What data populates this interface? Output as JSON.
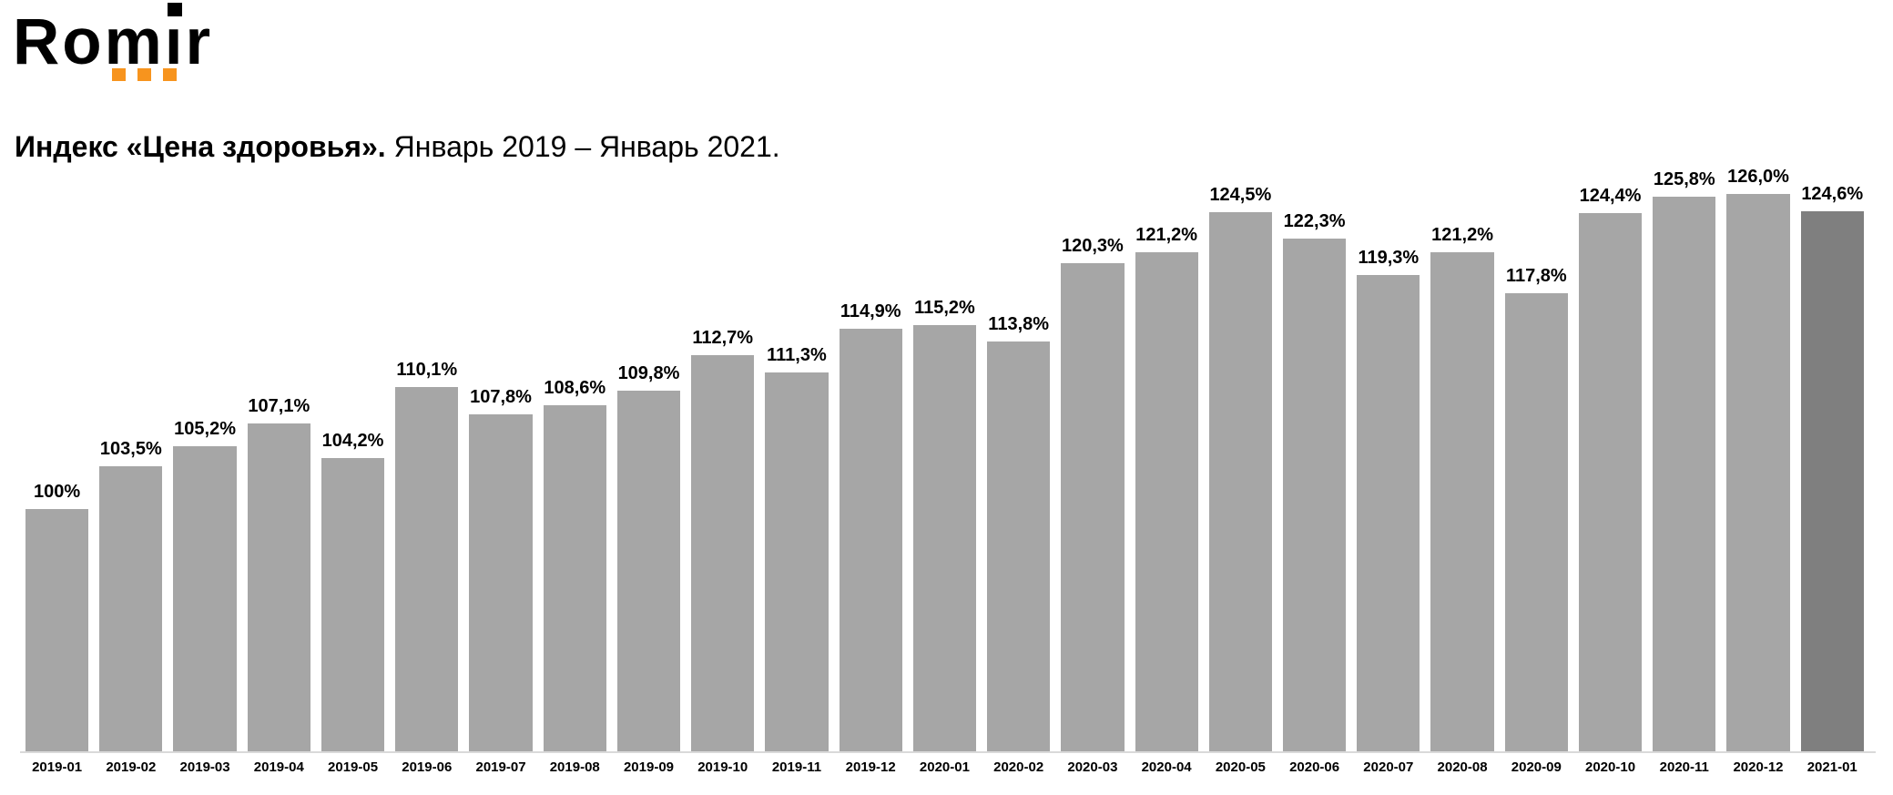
{
  "logo": {
    "text_before_i": "Rom",
    "dotless_i": "ı",
    "text_after_i": "r"
  },
  "header": {
    "title_bold": "Индекс «Цена здоровья».",
    "title_regular": "Январь 2019 – Январь 2021."
  },
  "colors": {
    "bar": "#a6a6a6",
    "bar_highlight": "#7f7f7f",
    "axis_line": "#d9d9d9",
    "logo_orange": "#f7941e",
    "logo_black": "#000000",
    "text": "#000000"
  },
  "chart_data": {
    "type": "bar",
    "title": "Индекс «Цена здоровья». Январь 2019 – Январь 2021.",
    "xlabel": "",
    "ylabel": "",
    "grid": false,
    "legend": false,
    "ylim": [
      80,
      130
    ],
    "highlight_index": 24,
    "categories": [
      "2019-01",
      "2019-02",
      "2019-03",
      "2019-04",
      "2019-05",
      "2019-06",
      "2019-07",
      "2019-08",
      "2019-09",
      "2019-10",
      "2019-11",
      "2019-12",
      "2020-01",
      "2020-02",
      "2020-03",
      "2020-04",
      "2020-05",
      "2020-06",
      "2020-07",
      "2020-08",
      "2020-09",
      "2020-10",
      "2020-11",
      "2020-12",
      "2021-01"
    ],
    "values": [
      100,
      103.5,
      105.2,
      107.1,
      104.2,
      110.1,
      107.8,
      108.6,
      109.8,
      112.7,
      111.3,
      114.9,
      115.2,
      113.8,
      120.3,
      121.2,
      124.5,
      122.3,
      119.3,
      121.2,
      117.8,
      124.4,
      125.8,
      126.0,
      124.6
    ],
    "value_labels": [
      "100%",
      "103,5%",
      "105,2%",
      "107,1%",
      "104,2%",
      "110,1%",
      "107,8%",
      "108,6%",
      "109,8%",
      "112,7%",
      "111,3%",
      "114,9%",
      "115,2%",
      "113,8%",
      "120,3%",
      "121,2%",
      "124,5%",
      "122,3%",
      "119,3%",
      "121,2%",
      "117,8%",
      "124,4%",
      "125,8%",
      "126,0%",
      "124,6%"
    ]
  }
}
